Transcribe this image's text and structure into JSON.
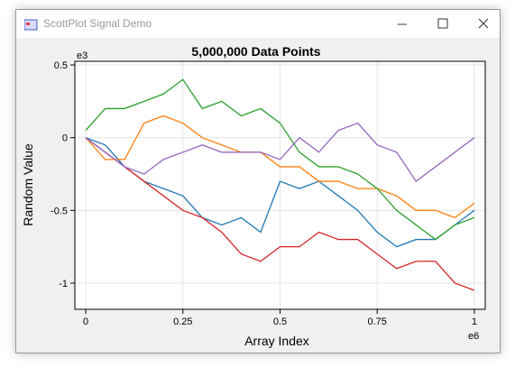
{
  "window": {
    "title": "ScottPlot Signal Demo"
  },
  "chart_data": {
    "type": "line",
    "title": "5,000,000 Data Points",
    "x_label": "Array Index",
    "y_label": "Random Value",
    "x_multiplier": "e6",
    "y_multiplier": "e3",
    "x": [
      0,
      0.05,
      0.1,
      0.15,
      0.2,
      0.25,
      0.3,
      0.35,
      0.4,
      0.45,
      0.5,
      0.55,
      0.6,
      0.65,
      0.7,
      0.75,
      0.8,
      0.85,
      0.9,
      0.95,
      1
    ],
    "series": [
      {
        "color": "#1f77b4",
        "values": [
          0,
          -0.05,
          -0.2,
          -0.3,
          -0.35,
          -0.4,
          -0.55,
          -0.6,
          -0.55,
          -0.65,
          -0.3,
          -0.35,
          -0.3,
          -0.4,
          -0.5,
          -0.65,
          -0.75,
          -0.7,
          -0.7,
          -0.6,
          -0.5
        ]
      },
      {
        "color": "#ff7f0e",
        "values": [
          0,
          -0.15,
          -0.15,
          0.1,
          0.15,
          0.1,
          0,
          -0.05,
          -0.1,
          -0.1,
          -0.2,
          -0.2,
          -0.3,
          -0.3,
          -0.35,
          -0.35,
          -0.4,
          -0.5,
          -0.5,
          -0.55,
          -0.45
        ]
      },
      {
        "color": "#2ca02c",
        "values": [
          0.05,
          0.2,
          0.2,
          0.25,
          0.3,
          0.4,
          0.2,
          0.25,
          0.15,
          0.2,
          0.1,
          -0.1,
          -0.2,
          -0.2,
          -0.25,
          -0.35,
          -0.5,
          -0.6,
          -0.7,
          -0.6,
          -0.55
        ]
      },
      {
        "color": "#d62728",
        "values": [
          0,
          -0.1,
          -0.2,
          -0.3,
          -0.4,
          -0.5,
          -0.55,
          -0.65,
          -0.8,
          -0.85,
          -0.75,
          -0.75,
          -0.65,
          -0.7,
          -0.7,
          -0.8,
          -0.9,
          -0.85,
          -0.85,
          -1.0,
          -1.05
        ]
      },
      {
        "color": "#9467bd",
        "values": [
          0,
          -0.1,
          -0.2,
          -0.25,
          -0.15,
          -0.1,
          -0.05,
          -0.1,
          -0.1,
          -0.1,
          -0.15,
          0.0,
          -0.1,
          0.05,
          0.1,
          -0.05,
          -0.1,
          -0.3,
          -0.2,
          -0.1,
          0.0
        ]
      }
    ],
    "xlim": [
      -0.028,
      1.028
    ],
    "ylim": [
      -1.18,
      0.525
    ],
    "xticks": [
      0,
      0.25,
      0.5,
      0.75,
      1
    ],
    "yticks": [
      0.5,
      0,
      -0.5,
      -1
    ],
    "grid": true
  }
}
